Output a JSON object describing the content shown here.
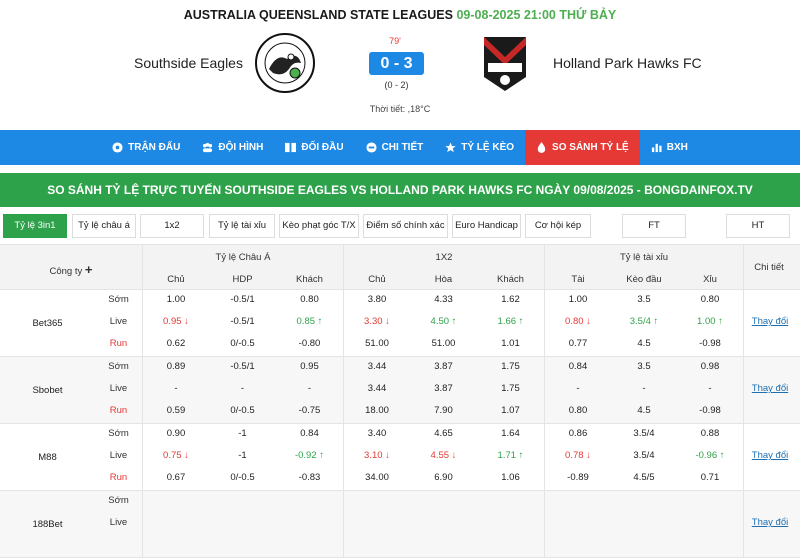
{
  "header": {
    "league": "AUSTRALIA QUEENSLAND STATE LEAGUES",
    "datetime": "09-08-2025 21:00 THỨ BẢY",
    "home_team": "Southside Eagles",
    "away_team": "Holland Park Hawks FC",
    "minute": "79'",
    "score": "0 - 3",
    "half_time": "(0 - 2)",
    "weather": "Thời tiết: ,18°C"
  },
  "nav": [
    {
      "label": "TRẬN ĐẤU",
      "icon": "football-icon"
    },
    {
      "label": "ĐỘI HÌNH",
      "icon": "team-icon"
    },
    {
      "label": "ĐỐI ĐẦU",
      "icon": "versus-icon"
    },
    {
      "label": "CHI TIẾT",
      "icon": "details-icon"
    },
    {
      "label": "TỶ LỆ KÈO",
      "icon": "star-icon"
    },
    {
      "label": "SO SÁNH TỶ LỆ",
      "icon": "compare-icon",
      "active": true
    },
    {
      "label": "BXH",
      "icon": "chart-icon"
    }
  ],
  "banner": "SO SÁNH TỶ LỆ TRỰC TUYẾN SOUTHSIDE EAGLES VS HOLLAND PARK HAWKS FC NGÀY 09/08/2025 - BONGDAINFOX.TV",
  "tabs": [
    "Tỷ lệ 3in1",
    "Tỷ lệ châu á",
    "1x2",
    "Tỷ lệ tài xỉu",
    "Kèo phạt góc T/X",
    "Điểm số chính xác",
    "Euro Handicap",
    "Cơ hội kép",
    "FT",
    "HT"
  ],
  "table": {
    "company_header": "Công ty",
    "plus_icon": "plus-icon",
    "groups": [
      "Tỷ lệ Châu Á",
      "1X2",
      "Tỷ lệ tài xỉu"
    ],
    "detail_header": "Chi tiết",
    "subheaders": [
      "Chủ",
      "HDP",
      "Khách",
      "Chủ",
      "Hòa",
      "Khách",
      "Tài",
      "Kèo đầu",
      "Xỉu"
    ],
    "row_types": [
      "Sớm",
      "Live",
      "Run"
    ],
    "detail_link": "Thay đổi",
    "companies": [
      {
        "name": "Bet365",
        "rows": [
          [
            [
              "1.00",
              ""
            ],
            [
              "-0.5/1",
              ""
            ],
            [
              "0.80",
              ""
            ],
            [
              "3.80",
              ""
            ],
            [
              "4.33",
              ""
            ],
            [
              "1.62",
              ""
            ],
            [
              "1.00",
              ""
            ],
            [
              "3.5",
              ""
            ],
            [
              "0.80",
              ""
            ]
          ],
          [
            [
              "0.95 ↓",
              "down"
            ],
            [
              "-0.5/1",
              ""
            ],
            [
              "0.85 ↑",
              "up"
            ],
            [
              "3.30 ↓",
              "down"
            ],
            [
              "4.50 ↑",
              "up"
            ],
            [
              "1.66 ↑",
              "up"
            ],
            [
              "0.80 ↓",
              "down"
            ],
            [
              "3.5/4 ↑",
              "up"
            ],
            [
              "1.00 ↑",
              "up"
            ]
          ],
          [
            [
              "0.62",
              ""
            ],
            [
              "0/-0.5",
              ""
            ],
            [
              "-0.80",
              ""
            ],
            [
              "51.00",
              ""
            ],
            [
              "51.00",
              ""
            ],
            [
              "1.01",
              ""
            ],
            [
              "0.77",
              ""
            ],
            [
              "4.5",
              ""
            ],
            [
              "-0.98",
              ""
            ]
          ]
        ]
      },
      {
        "name": "Sbobet",
        "rows": [
          [
            [
              "0.89",
              ""
            ],
            [
              "-0.5/1",
              ""
            ],
            [
              "0.95",
              ""
            ],
            [
              "3.44",
              ""
            ],
            [
              "3.87",
              ""
            ],
            [
              "1.75",
              ""
            ],
            [
              "0.84",
              ""
            ],
            [
              "3.5",
              ""
            ],
            [
              "0.98",
              ""
            ]
          ],
          [
            [
              "-",
              ""
            ],
            [
              "-",
              ""
            ],
            [
              "-",
              ""
            ],
            [
              "3.44",
              ""
            ],
            [
              "3.87",
              ""
            ],
            [
              "1.75",
              ""
            ],
            [
              "-",
              ""
            ],
            [
              "-",
              ""
            ],
            [
              "-",
              ""
            ]
          ],
          [
            [
              "0.59",
              ""
            ],
            [
              "0/-0.5",
              ""
            ],
            [
              "-0.75",
              ""
            ],
            [
              "18.00",
              ""
            ],
            [
              "7.90",
              ""
            ],
            [
              "1.07",
              ""
            ],
            [
              "0.80",
              ""
            ],
            [
              "4.5",
              ""
            ],
            [
              "-0.98",
              ""
            ]
          ]
        ]
      },
      {
        "name": "M88",
        "rows": [
          [
            [
              "0.90",
              ""
            ],
            [
              "-1",
              ""
            ],
            [
              "0.84",
              ""
            ],
            [
              "3.40",
              ""
            ],
            [
              "4.65",
              ""
            ],
            [
              "1.64",
              ""
            ],
            [
              "0.86",
              ""
            ],
            [
              "3.5/4",
              ""
            ],
            [
              "0.88",
              ""
            ]
          ],
          [
            [
              "0.75 ↓",
              "down"
            ],
            [
              "-1",
              ""
            ],
            [
              "-0.92 ↑",
              "up"
            ],
            [
              "3.10 ↓",
              "down"
            ],
            [
              "4.55 ↓",
              "down"
            ],
            [
              "1.71 ↑",
              "up"
            ],
            [
              "0.78 ↓",
              "down"
            ],
            [
              "3.5/4",
              ""
            ],
            [
              "-0.96 ↑",
              "up"
            ]
          ],
          [
            [
              "0.67",
              ""
            ],
            [
              "0/-0.5",
              ""
            ],
            [
              "-0.83",
              ""
            ],
            [
              "34.00",
              ""
            ],
            [
              "6.90",
              ""
            ],
            [
              "1.06",
              ""
            ],
            [
              "-0.89",
              ""
            ],
            [
              "4.5/5",
              ""
            ],
            [
              "0.71",
              ""
            ]
          ]
        ]
      },
      {
        "name": "188Bet",
        "rows": [
          [
            [
              "",
              ""
            ],
            [
              "",
              ""
            ],
            [
              "",
              ""
            ],
            [
              "",
              ""
            ],
            [
              "",
              ""
            ],
            [
              "",
              ""
            ],
            [
              "",
              ""
            ],
            [
              "",
              ""
            ],
            [
              "",
              ""
            ]
          ],
          [
            [
              "",
              ""
            ],
            [
              "",
              ""
            ],
            [
              "",
              ""
            ],
            [
              "",
              ""
            ],
            [
              "",
              ""
            ],
            [
              "",
              ""
            ],
            [
              "",
              ""
            ],
            [
              "",
              ""
            ],
            [
              "",
              ""
            ]
          ]
        ]
      }
    ]
  },
  "colors": {
    "accent_blue": "#1e88e5",
    "active_red": "#e53935",
    "green": "#2ea24a"
  }
}
